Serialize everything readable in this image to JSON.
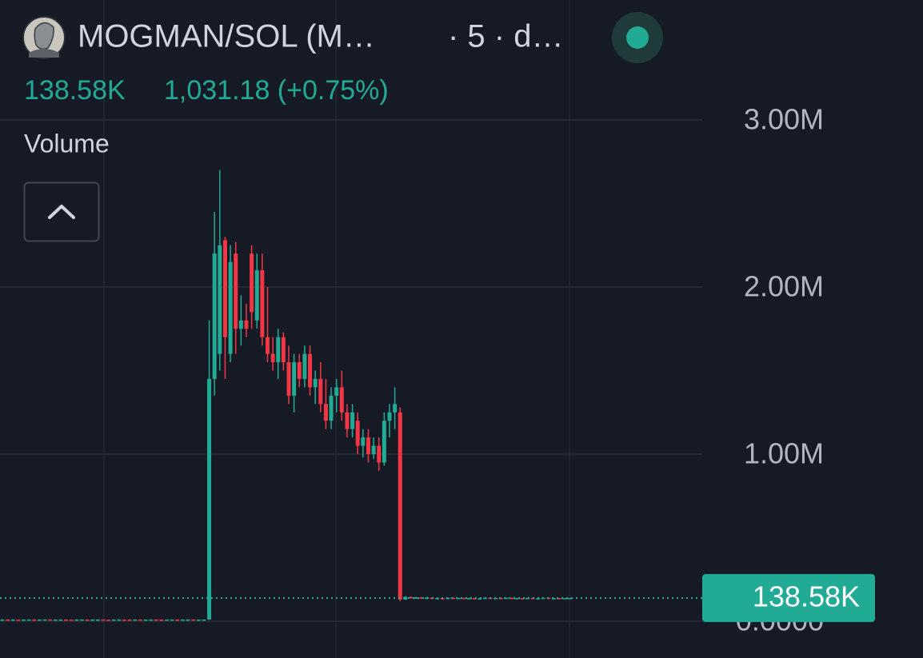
{
  "chart_data": {
    "type": "candlestick",
    "title": "MOGMAN/SOL (M…",
    "subtitle": "· 5 · d…",
    "change_label": "1,031.18 (+0.75%)",
    "indicator": "Volume",
    "up_color": "#22ab94",
    "down_color": "#f23645",
    "grid": true,
    "ylim": [
      0,
      3000000
    ],
    "yticks": [
      {
        "value": 0,
        "label": "0.0000"
      },
      {
        "value": 1000000,
        "label": "1.00M"
      },
      {
        "value": 2000000,
        "label": "2.00M"
      },
      {
        "value": 3000000,
        "label": "3.00M"
      }
    ],
    "price_line": {
      "value": 138580,
      "label": "138.58K"
    },
    "open": [
      9000,
      10200,
      9400,
      10100,
      9300,
      9800,
      10300,
      9500,
      9900,
      10400,
      9200,
      9700,
      10100,
      9600,
      9000,
      9800,
      10200,
      9400,
      9900,
      10300,
      9500,
      9100,
      9800,
      10200,
      9600,
      9300,
      10000,
      9400,
      9800,
      10300,
      9700,
      9200,
      9900,
      10100,
      9500,
      9800,
      10200,
      9300,
      9700,
      10000,
      1450000,
      1600000,
      2280000,
      1600000,
      2200000,
      1750000,
      1800000,
      2200000,
      1800000,
      2100000,
      1700000,
      1600000,
      1550000,
      1700000,
      1550000,
      1350000,
      1550000,
      1450000,
      1600000,
      1400000,
      1450000,
      1300000,
      1200000,
      1350000,
      1400000,
      1250000,
      1150000,
      1200000,
      1050000,
      1100000,
      1000000,
      1050000,
      950000,
      1200000,
      1250000,
      1250000,
      130000,
      145000,
      138000,
      142000,
      136000,
      141000,
      135000,
      139000,
      134000,
      140000,
      136000,
      139000,
      135000,
      138000,
      134000,
      137000,
      140000,
      136000,
      139000,
      137000,
      140000,
      135000,
      138000,
      136000,
      139000,
      134000,
      137000,
      140000,
      136000,
      138000,
      137000,
      138200
    ],
    "high": [
      10600,
      10600,
      10500,
      10500,
      10200,
      10700,
      10700,
      10300,
      10800,
      10800,
      10100,
      10500,
      10500,
      10000,
      10200,
      10600,
      10600,
      10300,
      10700,
      10700,
      9900,
      10200,
      10600,
      10600,
      10000,
      10400,
      10400,
      10200,
      10700,
      10700,
      10100,
      10300,
      10500,
      10500,
      10200,
      10600,
      10600,
      10100,
      10400,
      1800000,
      2450000,
      2700000,
      2300000,
      2250000,
      2270000,
      1950000,
      1900000,
      2250000,
      2200000,
      2200000,
      2000000,
      1700000,
      1750000,
      1730000,
      1650000,
      1600000,
      1600000,
      1650000,
      1650000,
      1500000,
      1550000,
      1450000,
      1400000,
      1450000,
      1500000,
      1300000,
      1300000,
      1250000,
      1150000,
      1150000,
      1100000,
      1100000,
      1250000,
      1300000,
      1400000,
      1280000,
      150000,
      148000,
      146000,
      145000,
      144000,
      143000,
      142000,
      141000,
      143000,
      142000,
      141000,
      140000,
      141000,
      140000,
      139000,
      142000,
      141000,
      141000,
      140000,
      142000,
      141000,
      140000,
      139000,
      141000,
      140000,
      139000,
      142000,
      141000,
      140000,
      139000,
      139000,
      139500
    ],
    "low": [
      8600,
      9000,
      9000,
      8900,
      8900,
      9400,
      9100,
      9100,
      9500,
      8800,
      8800,
      9300,
      9200,
      8600,
      8600,
      9400,
      9000,
      9000,
      9500,
      9100,
      8700,
      8700,
      9400,
      9200,
      8900,
      8900,
      9000,
      9000,
      9400,
      9300,
      8800,
      8800,
      9500,
      9100,
      9100,
      9400,
      8900,
      8900,
      9300,
      10000,
      1350000,
      1500000,
      1450000,
      1550000,
      1600000,
      1650000,
      1700000,
      1750000,
      1750000,
      1650000,
      1550000,
      1500000,
      1450000,
      1500000,
      1300000,
      1250000,
      1400000,
      1400000,
      1350000,
      1300000,
      1250000,
      1150000,
      1150000,
      1250000,
      1200000,
      1100000,
      1100000,
      1000000,
      980000,
      950000,
      970000,
      900000,
      930000,
      1100000,
      1150000,
      120000,
      127000,
      135000,
      134000,
      133000,
      132000,
      131000,
      130000,
      128000,
      131000,
      133000,
      134000,
      132000,
      133000,
      131000,
      132000,
      135000,
      134000,
      134000,
      135000,
      135000,
      133000,
      133000,
      134000,
      134000,
      132000,
      132000,
      135000,
      134000,
      134000,
      135000,
      135000,
      137000
    ],
    "close": [
      10200,
      9400,
      10100,
      9300,
      9800,
      10300,
      9500,
      9900,
      10400,
      9200,
      9700,
      10100,
      9600,
      9000,
      9800,
      10200,
      9400,
      9900,
      10300,
      9500,
      9100,
      9800,
      10200,
      9600,
      9300,
      10000,
      9400,
      9800,
      10300,
      9700,
      9200,
      9900,
      10100,
      9500,
      9800,
      10200,
      9300,
      9700,
      10000,
      1450000,
      2200000,
      2250000,
      1700000,
      2150000,
      1750000,
      1800000,
      1750000,
      1850000,
      2100000,
      1700000,
      1600000,
      1550000,
      1700000,
      1550000,
      1350000,
      1550000,
      1450000,
      1600000,
      1400000,
      1450000,
      1300000,
      1200000,
      1350000,
      1400000,
      1250000,
      1150000,
      1250000,
      1050000,
      1100000,
      1000000,
      1050000,
      950000,
      1200000,
      1250000,
      1300000,
      130000,
      145000,
      138000,
      142000,
      136000,
      141000,
      135000,
      139000,
      134000,
      140000,
      136000,
      139000,
      135000,
      138000,
      134000,
      137000,
      140000,
      136000,
      139000,
      137000,
      140000,
      135000,
      138000,
      136000,
      139000,
      134000,
      137000,
      140000,
      136000,
      138000,
      137000,
      138200,
      138580
    ]
  }
}
